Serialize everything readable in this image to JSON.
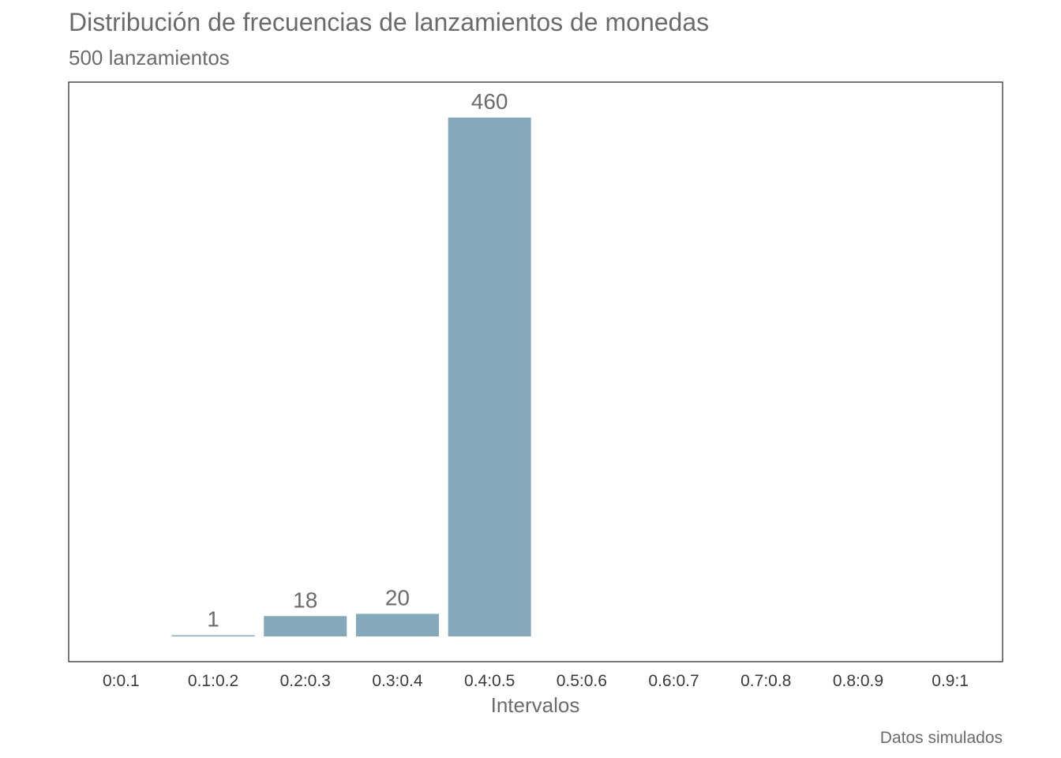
{
  "chart_data": {
    "type": "bar",
    "title": "Distribución de frecuencias de lanzamientos de monedas",
    "subtitle": "500  lanzamientos",
    "xlabel": "Intervalos",
    "ylabel": "",
    "caption": "Datos simulados",
    "categories": [
      "0:0.1",
      "0.1:0.2",
      "0.2:0.3",
      "0.3:0.4",
      "0.4:0.5",
      "0.5:0.6",
      "0.6:0.7",
      "0.7:0.8",
      "0.8:0.9",
      "0.9:1"
    ],
    "values": [
      0,
      1,
      18,
      20,
      460,
      0,
      0,
      0,
      0,
      0
    ],
    "data_labels": [
      "",
      "1",
      "18",
      "20",
      "460",
      "",
      "",
      "",
      "",
      ""
    ],
    "ylim": [
      0,
      483
    ],
    "grid": false,
    "bar_color": "#85a9ba",
    "frame_color": "#333333",
    "text_color": "#6b6b6b"
  }
}
